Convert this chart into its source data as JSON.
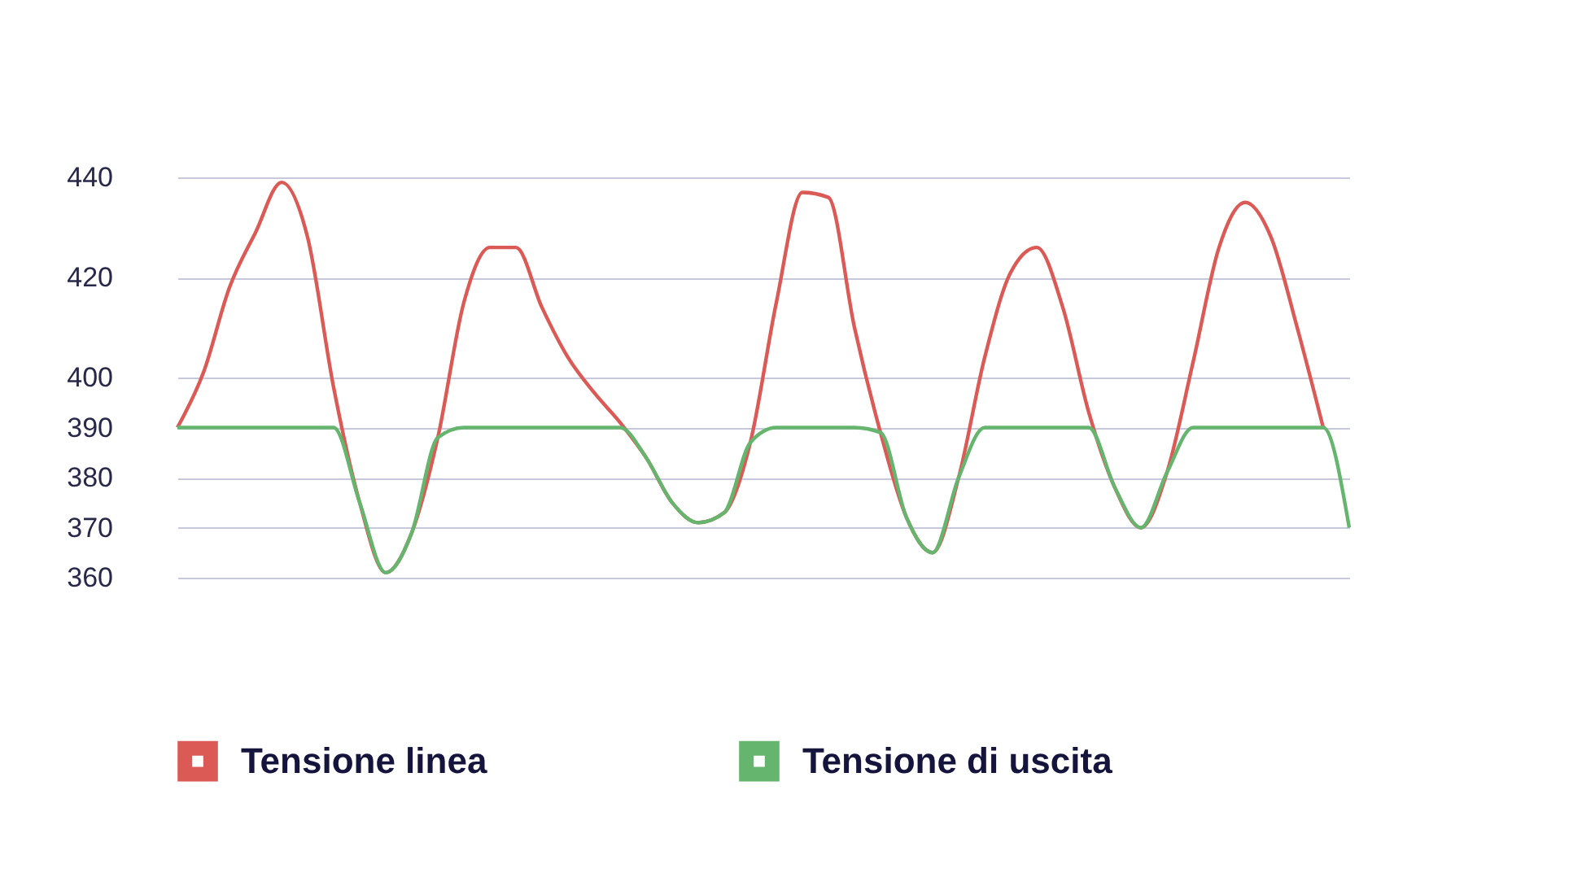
{
  "chart_data": {
    "type": "line",
    "categories": [
      null,
      null,
      null,
      null,
      null,
      null,
      null,
      null,
      null,
      null,
      null,
      null,
      null,
      null,
      null,
      null,
      null,
      null,
      null,
      null,
      null,
      null,
      null,
      null,
      null,
      null,
      null,
      null,
      null,
      null,
      null,
      null,
      null,
      null,
      null,
      null,
      null,
      null,
      null,
      null,
      null,
      null,
      null,
      null,
      null,
      null
    ],
    "series": [
      {
        "name": "Tensione linea",
        "color": "#dc5a55",
        "values": [
          390,
          401,
          418,
          429,
          439,
          428,
          398,
          375,
          361,
          369,
          388,
          415,
          426,
          426,
          414,
          404,
          397,
          391,
          384,
          375,
          371,
          373,
          387,
          415,
          437,
          436,
          410,
          389,
          372,
          365,
          380,
          404,
          421,
          426,
          414,
          393,
          378,
          370,
          381,
          403,
          426,
          435,
          428,
          410,
          390,
          null
        ]
      },
      {
        "name": "Tensione di uscita",
        "color": "#66b56e",
        "values": [
          390,
          390,
          390,
          390,
          390,
          390,
          390,
          375,
          361,
          369,
          388,
          390,
          390,
          390,
          390,
          390,
          390,
          390,
          384,
          375,
          371,
          373,
          387,
          390,
          390,
          390,
          390,
          389,
          372,
          365,
          380,
          390,
          390,
          390,
          390,
          390,
          378,
          370,
          381,
          390,
          390,
          390,
          390,
          390,
          390,
          370
        ]
      }
    ],
    "ylim": [
      360,
      440
    ],
    "yticks": [
      360,
      370,
      380,
      390,
      400,
      420,
      440
    ],
    "grid": "y",
    "legend": "bottom",
    "tick_labels": "y",
    "marker": "none",
    "line_style": "solid"
  }
}
